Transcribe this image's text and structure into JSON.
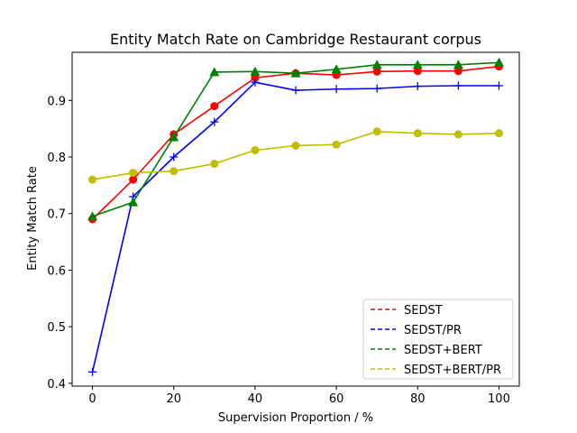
{
  "chart_data": {
    "type": "line",
    "title": "Entity Match Rate on Cambridge Restaurant corpus",
    "xlabel": "Supervision Proportion / %",
    "ylabel": "Entity Match Rate",
    "xlim": [
      -5,
      105
    ],
    "ylim": [
      0.395,
      0.985
    ],
    "xticks": [
      0,
      20,
      40,
      60,
      80,
      100
    ],
    "yticks": [
      0.4,
      0.5,
      0.6,
      0.7,
      0.8,
      0.9
    ],
    "ytick_labels": [
      "0.4",
      "0.5",
      "0.6",
      "0.7",
      "0.8",
      "0.9"
    ],
    "grid": false,
    "legend_position": "lower-right",
    "x": [
      0,
      10,
      20,
      30,
      40,
      50,
      60,
      70,
      80,
      90,
      100
    ],
    "series": [
      {
        "name": "SEDST",
        "color": "#ff0000",
        "marker": "circle",
        "values": [
          0.69,
          0.76,
          0.84,
          0.89,
          0.94,
          0.948,
          0.945,
          0.951,
          0.952,
          0.952,
          0.96
        ]
      },
      {
        "name": "SEDST/PR",
        "color": "#0000ff",
        "marker": "plus",
        "values": [
          0.42,
          0.73,
          0.8,
          0.862,
          0.932,
          0.918,
          0.92,
          0.921,
          0.925,
          0.926,
          0.926
        ]
      },
      {
        "name": "SEDST+BERT",
        "color": "#008000",
        "marker": "triangle",
        "values": [
          0.695,
          0.72,
          0.835,
          0.95,
          0.951,
          0.948,
          0.955,
          0.963,
          0.963,
          0.963,
          0.967
        ]
      },
      {
        "name": "SEDST+BERT/PR",
        "color": "#bfbf00",
        "marker": "circle",
        "values": [
          0.76,
          0.772,
          0.775,
          0.788,
          0.812,
          0.82,
          0.822,
          0.845,
          0.842,
          0.84,
          0.842
        ]
      }
    ]
  }
}
